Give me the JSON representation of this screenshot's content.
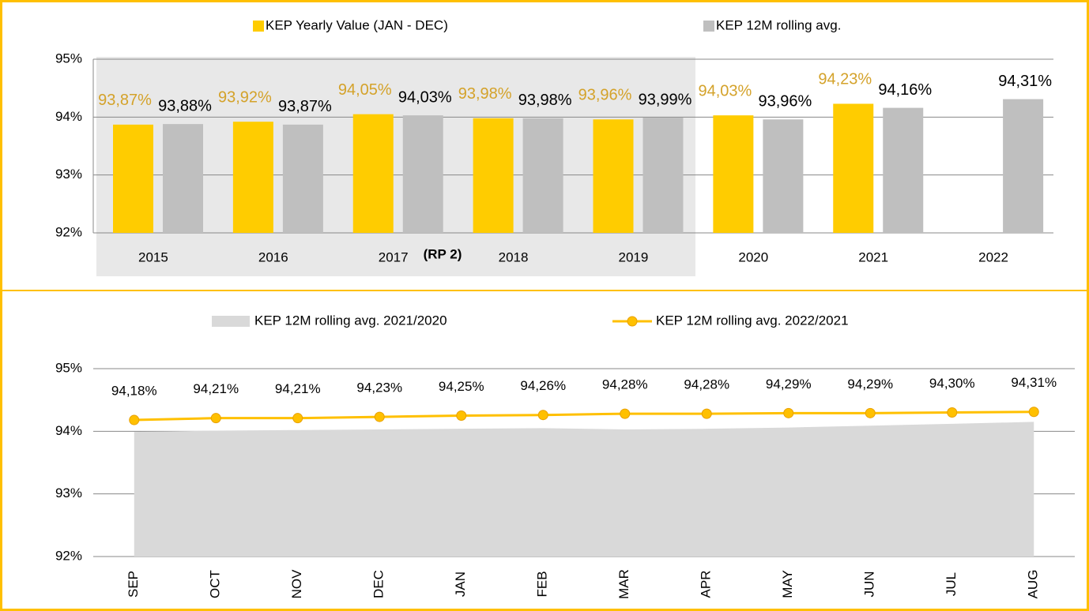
{
  "chart_data": [
    {
      "type": "bar",
      "annotation": "(RP 2)",
      "categories": [
        "2015",
        "2016",
        "2017",
        "2018",
        "2019",
        "2020",
        "2021",
        "2022"
      ],
      "series": [
        {
          "name": "KEP Yearly Value (JAN - DEC)",
          "color": "#ffcc00",
          "values": [
            93.87,
            93.92,
            94.05,
            93.98,
            93.96,
            94.03,
            94.23,
            null
          ],
          "value_labels": [
            "93,87%",
            "93,92%",
            "94,05%",
            "93,98%",
            "93,96%",
            "94,03%",
            "94,23%",
            null
          ]
        },
        {
          "name": "KEP 12M rolling avg.",
          "color": "#bfbfbf",
          "values": [
            93.88,
            93.87,
            94.03,
            93.98,
            93.99,
            93.96,
            94.16,
            94.31
          ],
          "value_labels": [
            "93,88%",
            "93,87%",
            "94,03%",
            "93,98%",
            "93,99%",
            "93,96%",
            "94,16%",
            "94,31%"
          ]
        }
      ],
      "ylim": [
        92,
        95
      ],
      "yticks": [
        {
          "value": 92,
          "label": "92%"
        },
        {
          "value": 93,
          "label": "93%"
        },
        {
          "value": 94,
          "label": "94%"
        },
        {
          "value": 95,
          "label": "95%"
        }
      ],
      "grid": true
    },
    {
      "type": "line",
      "categories": [
        "SEP",
        "OCT",
        "NOV",
        "DEC",
        "JAN",
        "FEB",
        "MAR",
        "APR",
        "MAY",
        "JUN",
        "JUL",
        "AUG"
      ],
      "series": [
        {
          "name": "KEP 12M rolling avg. 2021/2020",
          "color": "#d9d9d9",
          "style": "area",
          "values": [
            93.99,
            94.01,
            94.02,
            94.03,
            94.04,
            94.05,
            94.03,
            94.04,
            94.06,
            94.09,
            94.12,
            94.15
          ]
        },
        {
          "name": "KEP 12M rolling avg. 2022/2021",
          "color": "#ffc000",
          "style": "line",
          "values": [
            94.18,
            94.21,
            94.21,
            94.23,
            94.25,
            94.26,
            94.28,
            94.28,
            94.29,
            94.29,
            94.3,
            94.31
          ],
          "value_labels": [
            "94,18%",
            "94,21%",
            "94,21%",
            "94,23%",
            "94,25%",
            "94,26%",
            "94,28%",
            "94,28%",
            "94,29%",
            "94,29%",
            "94,30%",
            "94,31%"
          ]
        }
      ],
      "ylim": [
        92,
        95
      ],
      "yticks": [
        {
          "value": 92,
          "label": "92%"
        },
        {
          "value": 93,
          "label": "93%"
        },
        {
          "value": 94,
          "label": "94%"
        },
        {
          "value": 95,
          "label": "95%"
        }
      ],
      "grid": true
    }
  ]
}
